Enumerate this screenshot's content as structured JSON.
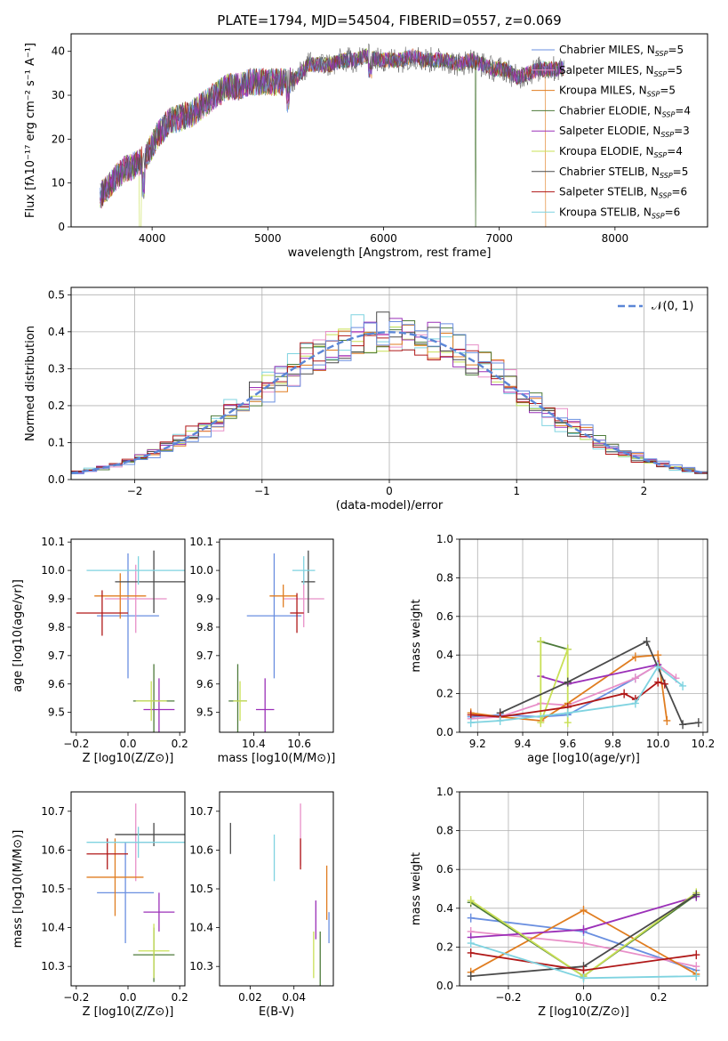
{
  "figure_title": "PLATE=1794, MJD=54504, FIBERID=0557, z=0.069",
  "models": [
    {
      "name": "Chabrier MILES",
      "nssp": "5",
      "color": "#6a8fe0"
    },
    {
      "name": "Salpeter MILES",
      "nssp": "5",
      "color": "#e88fc8"
    },
    {
      "name": "Kroupa MILES",
      "nssp": "5",
      "color": "#e07d20"
    },
    {
      "name": "Chabrier ELODIE",
      "nssp": "4",
      "color": "#4d7a3a"
    },
    {
      "name": "Salpeter ELODIE",
      "nssp": "3",
      "color": "#9b30b8"
    },
    {
      "name": "Kroupa ELODIE",
      "nssp": "4",
      "color": "#c9e056"
    },
    {
      "name": "Chabrier STELIB",
      "nssp": "5",
      "color": "#4a4a4a"
    },
    {
      "name": "Salpeter STELIB",
      "nssp": "6",
      "color": "#b01818"
    },
    {
      "name": "Kroupa STELIB",
      "nssp": "6",
      "color": "#7fd3e0"
    }
  ],
  "chart_data": [
    {
      "id": "spectrum",
      "type": "line",
      "xlabel": "wavelength [Angstrom, rest frame]",
      "ylabel": "Flux [fλ10⁻¹⁷ erg cm⁻² s⁻¹ A⁻¹]",
      "xlim": [
        3300,
        8800
      ],
      "ylim": [
        0,
        44
      ],
      "xticks": [
        4000,
        5000,
        6000,
        7000,
        8000
      ],
      "yticks": [
        0,
        10,
        20,
        30,
        40
      ],
      "continuum": [
        [
          3550,
          7
        ],
        [
          3650,
          10
        ],
        [
          3750,
          13
        ],
        [
          3850,
          14
        ],
        [
          3950,
          16
        ],
        [
          4050,
          21
        ],
        [
          4150,
          24
        ],
        [
          4250,
          25
        ],
        [
          4350,
          26
        ],
        [
          4450,
          28
        ],
        [
          4550,
          30
        ],
        [
          4650,
          32
        ],
        [
          4750,
          32
        ],
        [
          4850,
          33
        ],
        [
          4950,
          33
        ],
        [
          5050,
          33
        ],
        [
          5150,
          33
        ],
        [
          5250,
          34
        ],
        [
          5350,
          37
        ],
        [
          5450,
          37
        ],
        [
          5550,
          37
        ],
        [
          5650,
          38
        ],
        [
          5750,
          38
        ],
        [
          5850,
          39
        ],
        [
          5950,
          38
        ],
        [
          6050,
          38
        ],
        [
          6150,
          38
        ],
        [
          6250,
          39
        ],
        [
          6350,
          38
        ],
        [
          6450,
          38
        ],
        [
          6550,
          38
        ],
        [
          6650,
          37
        ],
        [
          6750,
          38
        ],
        [
          6850,
          37
        ],
        [
          6950,
          36
        ],
        [
          7050,
          36
        ],
        [
          7150,
          34
        ],
        [
          7250,
          35
        ],
        [
          7350,
          36
        ],
        [
          7450,
          36
        ],
        [
          7550,
          36
        ]
      ],
      "grid": false
    },
    {
      "id": "residuals",
      "type": "histogram",
      "xlabel": "(data-model)/error",
      "ylabel": "Normed distribution",
      "xlim": [
        -2.5,
        2.5
      ],
      "ylim": [
        0,
        0.52
      ],
      "xticks": [
        -2,
        -1,
        0,
        1,
        2
      ],
      "yticks": [
        0.0,
        0.1,
        0.2,
        0.3,
        0.4,
        0.5
      ],
      "reference_label": "𝒩(0, 1)",
      "bin_width": 0.1,
      "grid": true,
      "legend": "top-right"
    },
    {
      "id": "age-vs-Z",
      "type": "scatter",
      "xlabel": "Z [log10(Z/Z⊙)]",
      "ylabel": "age [log10(age/yr)]",
      "xlim": [
        -0.22,
        0.22
      ],
      "ylim": [
        9.43,
        10.11
      ],
      "xticks": [
        -0.2,
        0.0,
        0.2
      ],
      "yticks": [
        9.5,
        9.6,
        9.7,
        9.8,
        9.9,
        10.0,
        10.1
      ],
      "points": [
        {
          "x": 0.0,
          "y": 9.84,
          "xerr": 0.12,
          "yerr": 0.22,
          "model": 0
        },
        {
          "x": 0.03,
          "y": 9.9,
          "xerr": 0.12,
          "yerr": 0.12,
          "model": 1
        },
        {
          "x": -0.03,
          "y": 9.91,
          "xerr": 0.1,
          "yerr": 0.08,
          "model": 2
        },
        {
          "x": 0.1,
          "y": 9.54,
          "xerr": 0.08,
          "yerr": 0.13,
          "model": 3
        },
        {
          "x": 0.12,
          "y": 9.51,
          "xerr": 0.06,
          "yerr": 0.11,
          "model": 4
        },
        {
          "x": 0.09,
          "y": 9.54,
          "xerr": 0.06,
          "yerr": 0.07,
          "model": 5
        },
        {
          "x": 0.1,
          "y": 9.96,
          "xerr": 0.15,
          "yerr": 0.11,
          "model": 6
        },
        {
          "x": -0.1,
          "y": 9.85,
          "xerr": 0.1,
          "yerr": 0.08,
          "model": 7
        },
        {
          "x": 0.04,
          "y": 10.0,
          "xerr": 0.2,
          "yerr": 0.05,
          "model": 8
        }
      ]
    },
    {
      "id": "age-vs-mass",
      "type": "scatter",
      "xlabel": "mass [log10(M/M⊙)]",
      "ylabel": "",
      "xlim": [
        10.25,
        10.75
      ],
      "ylim": [
        9.43,
        10.11
      ],
      "xticks": [
        10.4,
        10.6
      ],
      "yticks": [
        9.5,
        9.6,
        9.7,
        9.8,
        9.9,
        10.0,
        10.1
      ],
      "points": [
        {
          "x": 10.49,
          "y": 9.84,
          "xerr": 0.12,
          "yerr": 0.22,
          "model": 0
        },
        {
          "x": 10.62,
          "y": 9.9,
          "xerr": 0.09,
          "yerr": 0.1,
          "model": 1
        },
        {
          "x": 10.53,
          "y": 9.91,
          "xerr": 0.06,
          "yerr": 0.04,
          "model": 2
        },
        {
          "x": 10.33,
          "y": 9.54,
          "xerr": 0.04,
          "yerr": 0.13,
          "model": 3
        },
        {
          "x": 10.45,
          "y": 9.51,
          "xerr": 0.04,
          "yerr": 0.11,
          "model": 4
        },
        {
          "x": 10.34,
          "y": 9.54,
          "xerr": 0.03,
          "yerr": 0.07,
          "model": 5
        },
        {
          "x": 10.64,
          "y": 9.96,
          "xerr": 0.03,
          "yerr": 0.11,
          "model": 6
        },
        {
          "x": 10.59,
          "y": 9.85,
          "xerr": 0.03,
          "yerr": 0.07,
          "model": 7
        },
        {
          "x": 10.62,
          "y": 10.0,
          "xerr": 0.05,
          "yerr": 0.05,
          "model": 8
        }
      ]
    },
    {
      "id": "weight-vs-age",
      "type": "line",
      "xlabel": "age  [log10(age/yr)]",
      "ylabel": "mass weight",
      "xlim": [
        9.12,
        10.22
      ],
      "ylim": [
        0,
        1.0
      ],
      "xticks": [
        9.2,
        9.4,
        9.6,
        9.8,
        10.0,
        10.2
      ],
      "yticks": [
        0.0,
        0.2,
        0.4,
        0.6,
        0.8,
        1.0
      ],
      "grid": true,
      "series": [
        {
          "model": 0,
          "x": [
            9.17,
            9.3,
            9.48,
            9.6,
            9.9,
            10.0
          ],
          "y": [
            0.08,
            0.09,
            0.08,
            0.09,
            0.28,
            0.35
          ]
        },
        {
          "model": 1,
          "x": [
            9.17,
            9.3,
            9.48,
            9.6,
            9.9,
            10.0,
            10.08
          ],
          "y": [
            0.07,
            0.08,
            0.15,
            0.14,
            0.28,
            0.35,
            0.28
          ]
        },
        {
          "model": 2,
          "x": [
            9.17,
            9.3,
            9.48,
            9.6,
            9.9,
            10.0,
            10.04
          ],
          "y": [
            0.1,
            0.08,
            0.06,
            0.15,
            0.39,
            0.4,
            0.06
          ]
        },
        {
          "model": 3,
          "x": [
            9.48,
            9.6
          ],
          "y": [
            0.47,
            0.43
          ]
        },
        {
          "model": 4,
          "x": [
            9.48,
            9.6,
            10.0
          ],
          "y": [
            0.29,
            0.25,
            0.35
          ]
        },
        {
          "model": 5,
          "x": [
            9.48,
            9.48,
            9.6,
            9.6
          ],
          "y": [
            0.47,
            0.05,
            0.43,
            0.05
          ]
        },
        {
          "model": 6,
          "x": [
            9.3,
            9.6,
            9.95,
            10.11,
            10.18
          ],
          "y": [
            0.1,
            0.26,
            0.47,
            0.04,
            0.05
          ]
        },
        {
          "model": 7,
          "x": [
            9.17,
            9.3,
            9.6,
            9.85,
            9.9,
            10.0,
            10.03
          ],
          "y": [
            0.09,
            0.08,
            0.13,
            0.2,
            0.17,
            0.26,
            0.25
          ]
        },
        {
          "model": 8,
          "x": [
            9.17,
            9.3,
            9.6,
            9.9,
            10.0,
            10.11
          ],
          "y": [
            0.05,
            0.06,
            0.1,
            0.15,
            0.34,
            0.24
          ]
        }
      ]
    },
    {
      "id": "mass-vs-Z",
      "type": "scatter",
      "xlabel": "Z [log10(Z/Z⊙)]",
      "ylabel": "mass [log10(M/M⊙)]",
      "xlim": [
        -0.22,
        0.22
      ],
      "ylim": [
        10.25,
        10.75
      ],
      "xticks": [
        -0.2,
        0.0,
        0.2
      ],
      "yticks": [
        10.3,
        10.4,
        10.5,
        10.6,
        10.7
      ],
      "points": [
        {
          "x": -0.01,
          "y": 10.49,
          "xerr": 0.11,
          "yerr": 0.13,
          "model": 0
        },
        {
          "x": 0.03,
          "y": 10.62,
          "xerr": 0.06,
          "yerr": 0.1,
          "model": 1
        },
        {
          "x": -0.05,
          "y": 10.53,
          "xerr": 0.11,
          "yerr": 0.1,
          "model": 2
        },
        {
          "x": 0.1,
          "y": 10.33,
          "xerr": 0.08,
          "yerr": 0.07,
          "model": 3
        },
        {
          "x": 0.12,
          "y": 10.44,
          "xerr": 0.06,
          "yerr": 0.05,
          "model": 4
        },
        {
          "x": 0.1,
          "y": 10.34,
          "xerr": 0.06,
          "yerr": 0.07,
          "model": 5
        },
        {
          "x": 0.1,
          "y": 10.64,
          "xerr": 0.15,
          "yerr": 0.03,
          "model": 6
        },
        {
          "x": -0.08,
          "y": 10.59,
          "xerr": 0.08,
          "yerr": 0.04,
          "model": 7
        },
        {
          "x": 0.04,
          "y": 10.62,
          "xerr": 0.2,
          "yerr": 0.04,
          "model": 8
        }
      ]
    },
    {
      "id": "mass-vs-ebv",
      "type": "scatter",
      "xlabel": "E(B-V)",
      "ylabel": "",
      "xlim": [
        0.006,
        0.058
      ],
      "ylim": [
        10.25,
        10.75
      ],
      "xticks": [
        0.02,
        0.04
      ],
      "yticks": [
        10.3,
        10.4,
        10.5,
        10.6,
        10.7
      ],
      "points": [
        {
          "x": 0.056,
          "y": 10.4,
          "yerr": 0.04,
          "model": 0
        },
        {
          "x": 0.043,
          "y": 10.64,
          "yerr": 0.08,
          "model": 1
        },
        {
          "x": 0.055,
          "y": 10.49,
          "yerr": 0.07,
          "model": 2
        },
        {
          "x": 0.052,
          "y": 10.32,
          "yerr": 0.07,
          "model": 3
        },
        {
          "x": 0.05,
          "y": 10.42,
          "yerr": 0.05,
          "model": 4
        },
        {
          "x": 0.049,
          "y": 10.33,
          "yerr": 0.06,
          "model": 5
        },
        {
          "x": 0.011,
          "y": 10.63,
          "yerr": 0.04,
          "model": 6
        },
        {
          "x": 0.043,
          "y": 10.59,
          "yerr": 0.04,
          "model": 7
        },
        {
          "x": 0.031,
          "y": 10.58,
          "yerr": 0.06,
          "model": 8
        }
      ]
    },
    {
      "id": "weight-vs-Z",
      "type": "line",
      "xlabel": "Z [log10(Z/Z⊙)]",
      "ylabel": "mass weight",
      "xlim": [
        -0.33,
        0.33
      ],
      "ylim": [
        0,
        1.0
      ],
      "xticks": [
        -0.2,
        0.0,
        0.2
      ],
      "yticks": [
        0.0,
        0.2,
        0.4,
        0.6,
        0.8,
        1.0
      ],
      "grid": true,
      "series": [
        {
          "model": 0,
          "x": [
            -0.3,
            0.0,
            0.3
          ],
          "y": [
            0.35,
            0.28,
            0.08
          ]
        },
        {
          "model": 1,
          "x": [
            -0.3,
            0.0,
            0.3
          ],
          "y": [
            0.28,
            0.22,
            0.1
          ]
        },
        {
          "model": 2,
          "x": [
            -0.3,
            0.0,
            0.3
          ],
          "y": [
            0.07,
            0.39,
            0.06
          ]
        },
        {
          "model": 3,
          "x": [
            -0.3,
            0.0,
            0.3
          ],
          "y": [
            0.43,
            0.05,
            0.47
          ]
        },
        {
          "model": 4,
          "x": [
            -0.3,
            0.0,
            0.3
          ],
          "y": [
            0.25,
            0.29,
            0.46
          ]
        },
        {
          "model": 5,
          "x": [
            -0.3,
            0.0,
            0.3
          ],
          "y": [
            0.44,
            0.05,
            0.48
          ]
        },
        {
          "model": 6,
          "x": [
            -0.3,
            0.0,
            0.3
          ],
          "y": [
            0.05,
            0.1,
            0.47
          ]
        },
        {
          "model": 7,
          "x": [
            -0.3,
            0.0,
            0.3
          ],
          "y": [
            0.17,
            0.08,
            0.16
          ]
        },
        {
          "model": 8,
          "x": [
            -0.3,
            0.0,
            0.3
          ],
          "y": [
            0.22,
            0.04,
            0.05
          ]
        }
      ]
    }
  ]
}
